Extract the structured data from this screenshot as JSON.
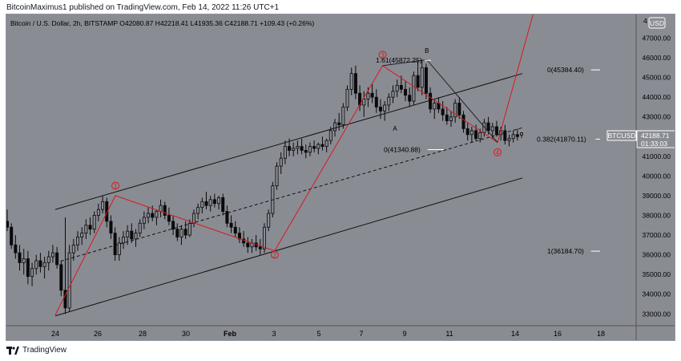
{
  "header": {
    "published_line": "BitcoinMaximus1 published on TradingView.com, Feb 14, 2022 11:26 UTC+1"
  },
  "footer": {
    "brand": "TradingView"
  },
  "colors": {
    "background": "#8a8c94",
    "candles": "#0a0a0a",
    "wave_lines": "#d61b1b",
    "channel": "#111111",
    "text": "#000000"
  },
  "chart_data": {
    "type": "candlestick",
    "title": "Bitcoin / U.S. Dollar, 2h, BITSTAMP",
    "ohlc": {
      "o_label": "O",
      "o": "42080.87",
      "h_label": "H",
      "h": "42218.41",
      "l_label": "L",
      "l": "41935.36",
      "c_label": "C",
      "c": "42188.71",
      "change": "+109.43 (+0.26%)"
    },
    "currency": "USD",
    "symbol": "BTCUSD",
    "last_price": "42188.71",
    "countdown": "01:33:03",
    "y_axis": {
      "ticks": [
        "47000.00",
        "46000.00",
        "45000.00",
        "44000.00",
        "43000.00",
        "42000.00",
        "41000.00",
        "40000.00",
        "39000.00",
        "38000.00",
        "37000.00",
        "36000.00",
        "35000.00",
        "34000.00",
        "33000.00"
      ],
      "ylim": [
        32400,
        48200
      ],
      "top_partial": "4"
    },
    "x_axis": {
      "ticks": [
        "24",
        "26",
        "28",
        "30",
        "Feb",
        "3",
        "5",
        "7",
        "9",
        "11",
        "14",
        "16",
        "18"
      ]
    },
    "wave_path": [
      {
        "date": "Jan 24",
        "price": 32950
      },
      {
        "date": "Jan 26 20:00",
        "price": 39000
      },
      {
        "date": "Feb 3 08:00",
        "price": 36200
      },
      {
        "date": "Feb 8 10:00",
        "price": 45600
      },
      {
        "date": "Feb 13 20:00",
        "price": 41700
      },
      {
        "date": "Feb 15 12:00",
        "price": 48200
      }
    ],
    "correction_path": [
      {
        "date": "Feb 8 10:00",
        "price": 45600
      },
      {
        "date": "Feb 10 12:00",
        "price": 45900
      },
      {
        "date": "Feb 13 20:00",
        "price": 41700
      }
    ],
    "wave_labels": [
      {
        "label": "1",
        "date": "Jan 26 20:00",
        "price": 39500
      },
      {
        "label": "2",
        "date": "Feb 3 08:00",
        "price": 36000
      },
      {
        "label": "3",
        "date": "Feb 8 10:00",
        "price": 46150
      },
      {
        "label": "4",
        "date": "Feb 13 20:00",
        "price": 41200
      }
    ],
    "abc_labels": [
      {
        "label": "A",
        "date": "Feb 9",
        "price": 42300
      },
      {
        "label": "B",
        "date": "Feb 10 12:00",
        "price": 46250
      }
    ],
    "fib_levels": [
      {
        "text": "1.61(45872.25)",
        "price": 45872.25
      },
      {
        "text": "0(45384.40)",
        "price": 45384.4
      },
      {
        "text": "0.382(41870.11)",
        "price": 41870.11
      },
      {
        "text": "0(41340.88)",
        "price": 41340.88
      },
      {
        "text": "1(36184.70)",
        "price": 36184.7
      }
    ],
    "channel": {
      "upper": [
        {
          "date": "Jan 24",
          "price": 38300
        },
        {
          "date": "Feb 15",
          "price": 45200
        }
      ],
      "middle": [
        {
          "date": "Jan 24",
          "price": 35600
        },
        {
          "date": "Feb 15",
          "price": 42450
        }
      ],
      "lower": [
        {
          "date": "Jan 24",
          "price": 32900
        },
        {
          "date": "Feb 15",
          "price": 39900
        }
      ]
    },
    "candles": [
      {
        "o": 37700,
        "h": 38300,
        "l": 37200,
        "c": 37400
      },
      {
        "o": 37400,
        "h": 37600,
        "l": 36300,
        "c": 36500
      },
      {
        "o": 36500,
        "h": 37000,
        "l": 35800,
        "c": 36100
      },
      {
        "o": 36100,
        "h": 36500,
        "l": 35200,
        "c": 35600
      },
      {
        "o": 35600,
        "h": 36300,
        "l": 35000,
        "c": 35800
      },
      {
        "o": 35800,
        "h": 36200,
        "l": 34500,
        "c": 34900
      },
      {
        "o": 34900,
        "h": 35600,
        "l": 34400,
        "c": 35300
      },
      {
        "o": 35300,
        "h": 36000,
        "l": 35000,
        "c": 35700
      },
      {
        "o": 35700,
        "h": 36100,
        "l": 35100,
        "c": 35400
      },
      {
        "o": 35400,
        "h": 35900,
        "l": 34800,
        "c": 35600
      },
      {
        "o": 35600,
        "h": 36200,
        "l": 35200,
        "c": 35900
      },
      {
        "o": 35900,
        "h": 36500,
        "l": 35600,
        "c": 36100
      },
      {
        "o": 36100,
        "h": 36400,
        "l": 35300,
        "c": 35500
      },
      {
        "o": 35500,
        "h": 35700,
        "l": 33900,
        "c": 34200
      },
      {
        "o": 34200,
        "h": 37900,
        "l": 33000,
        "c": 33300
      },
      {
        "o": 33300,
        "h": 36500,
        "l": 33100,
        "c": 36100
      },
      {
        "o": 36100,
        "h": 36800,
        "l": 35700,
        "c": 36500
      },
      {
        "o": 36500,
        "h": 37200,
        "l": 36200,
        "c": 36900
      },
      {
        "o": 36900,
        "h": 37400,
        "l": 36500,
        "c": 37100
      },
      {
        "o": 37100,
        "h": 37800,
        "l": 36800,
        "c": 37500
      },
      {
        "o": 37500,
        "h": 37900,
        "l": 37000,
        "c": 37300
      },
      {
        "o": 37300,
        "h": 38200,
        "l": 37100,
        "c": 38000
      },
      {
        "o": 38000,
        "h": 38600,
        "l": 37700,
        "c": 38300
      },
      {
        "o": 38300,
        "h": 39000,
        "l": 38100,
        "c": 38700
      },
      {
        "o": 38700,
        "h": 38900,
        "l": 37400,
        "c": 37700
      },
      {
        "o": 37700,
        "h": 38000,
        "l": 36800,
        "c": 37100
      },
      {
        "o": 37100,
        "h": 37400,
        "l": 35700,
        "c": 36000
      },
      {
        "o": 36000,
        "h": 36900,
        "l": 35700,
        "c": 36600
      },
      {
        "o": 36600,
        "h": 37200,
        "l": 36300,
        "c": 36900
      },
      {
        "o": 36900,
        "h": 37500,
        "l": 36500,
        "c": 37200
      },
      {
        "o": 37200,
        "h": 37600,
        "l": 36600,
        "c": 36800
      },
      {
        "o": 36800,
        "h": 37300,
        "l": 36400,
        "c": 37100
      },
      {
        "o": 37100,
        "h": 37800,
        "l": 36900,
        "c": 37600
      },
      {
        "o": 37600,
        "h": 38200,
        "l": 37300,
        "c": 37900
      },
      {
        "o": 37900,
        "h": 38400,
        "l": 37600,
        "c": 38100
      },
      {
        "o": 38100,
        "h": 38500,
        "l": 37700,
        "c": 37900
      },
      {
        "o": 37900,
        "h": 38300,
        "l": 37500,
        "c": 38200
      },
      {
        "o": 38200,
        "h": 38800,
        "l": 37900,
        "c": 38500
      },
      {
        "o": 38500,
        "h": 38700,
        "l": 37800,
        "c": 38000
      },
      {
        "o": 38000,
        "h": 38400,
        "l": 37500,
        "c": 37700
      },
      {
        "o": 37700,
        "h": 38000,
        "l": 37000,
        "c": 37300
      },
      {
        "o": 37300,
        "h": 37600,
        "l": 36700,
        "c": 36900
      },
      {
        "o": 36900,
        "h": 37500,
        "l": 36500,
        "c": 37300
      },
      {
        "o": 37300,
        "h": 37700,
        "l": 36800,
        "c": 37000
      },
      {
        "o": 37000,
        "h": 37800,
        "l": 36900,
        "c": 37600
      },
      {
        "o": 37600,
        "h": 38300,
        "l": 37400,
        "c": 38100
      },
      {
        "o": 38100,
        "h": 38600,
        "l": 37800,
        "c": 38400
      },
      {
        "o": 38400,
        "h": 38900,
        "l": 38100,
        "c": 38700
      },
      {
        "o": 38700,
        "h": 39200,
        "l": 38300,
        "c": 38500
      },
      {
        "o": 38500,
        "h": 39000,
        "l": 38200,
        "c": 38800
      },
      {
        "o": 38800,
        "h": 39100,
        "l": 38400,
        "c": 38600
      },
      {
        "o": 38600,
        "h": 39000,
        "l": 38300,
        "c": 38900
      },
      {
        "o": 38900,
        "h": 39100,
        "l": 38000,
        "c": 38200
      },
      {
        "o": 38200,
        "h": 38500,
        "l": 37400,
        "c": 37600
      },
      {
        "o": 37600,
        "h": 38000,
        "l": 37100,
        "c": 37400
      },
      {
        "o": 37400,
        "h": 37700,
        "l": 36900,
        "c": 37100
      },
      {
        "o": 37100,
        "h": 37400,
        "l": 36600,
        "c": 36800
      },
      {
        "o": 36800,
        "h": 37200,
        "l": 36400,
        "c": 36600
      },
      {
        "o": 36600,
        "h": 36900,
        "l": 36100,
        "c": 36400
      },
      {
        "o": 36400,
        "h": 36800,
        "l": 36100,
        "c": 36600
      },
      {
        "o": 36600,
        "h": 37000,
        "l": 36200,
        "c": 36400
      },
      {
        "o": 36400,
        "h": 36800,
        "l": 36000,
        "c": 36300
      },
      {
        "o": 36300,
        "h": 37600,
        "l": 36100,
        "c": 37400
      },
      {
        "o": 37400,
        "h": 38300,
        "l": 37200,
        "c": 38100
      },
      {
        "o": 38100,
        "h": 39700,
        "l": 37900,
        "c": 39500
      },
      {
        "o": 39500,
        "h": 40700,
        "l": 39300,
        "c": 40500
      },
      {
        "o": 40500,
        "h": 41200,
        "l": 40100,
        "c": 40900
      },
      {
        "o": 40900,
        "h": 41800,
        "l": 40600,
        "c": 41500
      },
      {
        "o": 41500,
        "h": 41900,
        "l": 41000,
        "c": 41300
      },
      {
        "o": 41300,
        "h": 41700,
        "l": 41000,
        "c": 41400
      },
      {
        "o": 41400,
        "h": 41800,
        "l": 41100,
        "c": 41500
      },
      {
        "o": 41500,
        "h": 41900,
        "l": 41100,
        "c": 41300
      },
      {
        "o": 41300,
        "h": 41600,
        "l": 40900,
        "c": 41200
      },
      {
        "o": 41200,
        "h": 41700,
        "l": 41000,
        "c": 41500
      },
      {
        "o": 41500,
        "h": 41800,
        "l": 41200,
        "c": 41400
      },
      {
        "o": 41400,
        "h": 41700,
        "l": 41100,
        "c": 41600
      },
      {
        "o": 41600,
        "h": 42000,
        "l": 41300,
        "c": 41500
      },
      {
        "o": 41500,
        "h": 41900,
        "l": 41200,
        "c": 41800
      },
      {
        "o": 41800,
        "h": 42500,
        "l": 41600,
        "c": 42300
      },
      {
        "o": 42300,
        "h": 42900,
        "l": 42000,
        "c": 42700
      },
      {
        "o": 42700,
        "h": 43200,
        "l": 42300,
        "c": 42600
      },
      {
        "o": 42600,
        "h": 43700,
        "l": 42400,
        "c": 43500
      },
      {
        "o": 43500,
        "h": 44600,
        "l": 43300,
        "c": 44400
      },
      {
        "o": 44400,
        "h": 45500,
        "l": 44100,
        "c": 45200
      },
      {
        "o": 45200,
        "h": 45600,
        "l": 43900,
        "c": 44200
      },
      {
        "o": 44200,
        "h": 44600,
        "l": 43300,
        "c": 43600
      },
      {
        "o": 43600,
        "h": 44300,
        "l": 43000,
        "c": 43900
      },
      {
        "o": 43900,
        "h": 44500,
        "l": 43500,
        "c": 44200
      },
      {
        "o": 44200,
        "h": 44700,
        "l": 43700,
        "c": 44000
      },
      {
        "o": 44000,
        "h": 44400,
        "l": 43200,
        "c": 43500
      },
      {
        "o": 43500,
        "h": 43900,
        "l": 42900,
        "c": 43300
      },
      {
        "o": 43300,
        "h": 43800,
        "l": 42800,
        "c": 43600
      },
      {
        "o": 43600,
        "h": 44200,
        "l": 43300,
        "c": 44000
      },
      {
        "o": 44000,
        "h": 44600,
        "l": 43700,
        "c": 44300
      },
      {
        "o": 44300,
        "h": 44900,
        "l": 44000,
        "c": 44600
      },
      {
        "o": 44600,
        "h": 45100,
        "l": 44200,
        "c": 44400
      },
      {
        "o": 44400,
        "h": 44800,
        "l": 43800,
        "c": 44100
      },
      {
        "o": 44100,
        "h": 44500,
        "l": 43500,
        "c": 43800
      },
      {
        "o": 43800,
        "h": 45300,
        "l": 43600,
        "c": 45100
      },
      {
        "o": 45100,
        "h": 45800,
        "l": 44300,
        "c": 44500
      },
      {
        "o": 44500,
        "h": 45900,
        "l": 44100,
        "c": 45500
      },
      {
        "o": 45500,
        "h": 45700,
        "l": 43900,
        "c": 44200
      },
      {
        "o": 44200,
        "h": 44500,
        "l": 43200,
        "c": 43400
      },
      {
        "o": 43400,
        "h": 43900,
        "l": 42900,
        "c": 43700
      },
      {
        "o": 43700,
        "h": 44000,
        "l": 43200,
        "c": 43400
      },
      {
        "o": 43400,
        "h": 43800,
        "l": 42800,
        "c": 43100
      },
      {
        "o": 43100,
        "h": 43500,
        "l": 42600,
        "c": 42800
      },
      {
        "o": 42800,
        "h": 43300,
        "l": 42500,
        "c": 43000
      },
      {
        "o": 43000,
        "h": 43900,
        "l": 42700,
        "c": 43700
      },
      {
        "o": 43700,
        "h": 44000,
        "l": 42900,
        "c": 43100
      },
      {
        "o": 43100,
        "h": 43300,
        "l": 42200,
        "c": 42400
      },
      {
        "o": 42400,
        "h": 42700,
        "l": 41800,
        "c": 42100
      },
      {
        "o": 42100,
        "h": 42500,
        "l": 41700,
        "c": 42300
      },
      {
        "o": 42300,
        "h": 42600,
        "l": 41800,
        "c": 41900
      },
      {
        "o": 41900,
        "h": 42400,
        "l": 41700,
        "c": 42200
      },
      {
        "o": 42200,
        "h": 42900,
        "l": 42000,
        "c": 42700
      },
      {
        "o": 42700,
        "h": 43000,
        "l": 42100,
        "c": 42300
      },
      {
        "o": 42300,
        "h": 42700,
        "l": 41900,
        "c": 42500
      },
      {
        "o": 42500,
        "h": 42800,
        "l": 42000,
        "c": 42100
      },
      {
        "o": 42100,
        "h": 42500,
        "l": 41800,
        "c": 42300
      },
      {
        "o": 42300,
        "h": 42600,
        "l": 41600,
        "c": 41800
      },
      {
        "o": 41800,
        "h": 42100,
        "l": 41500,
        "c": 41900
      },
      {
        "o": 41900,
        "h": 42300,
        "l": 41700,
        "c": 42100
      },
      {
        "o": 42100,
        "h": 42400,
        "l": 41800,
        "c": 42000
      },
      {
        "o": 42080,
        "h": 42218,
        "l": 41935,
        "c": 42188
      }
    ]
  }
}
